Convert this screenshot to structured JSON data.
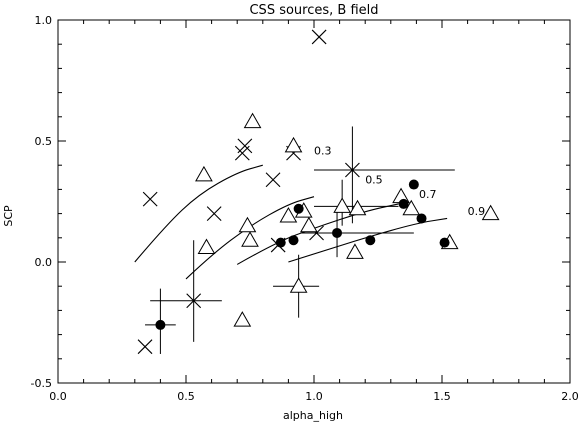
{
  "chart_data": {
    "type": "scatter",
    "title": "CSS sources, B field",
    "xlabel": "alpha_high",
    "ylabel": "SCP",
    "xlim": [
      0.0,
      2.0
    ],
    "ylim": [
      -0.5,
      1.0
    ],
    "xticks": [
      0.0,
      0.5,
      1.0,
      1.5,
      2.0
    ],
    "yticks": [
      -0.5,
      0.0,
      0.5,
      1.0
    ],
    "xtick_labels": [
      "0.0",
      "0.5",
      "1.0",
      "1.5",
      "2.0"
    ],
    "ytick_labels": [
      "-0.5",
      "0.0",
      "0.5",
      "1.0"
    ],
    "grid": false,
    "series": [
      {
        "marker": "cross",
        "points": [
          {
            "x": 1.02,
            "y": 0.93
          },
          {
            "x": 0.73,
            "y": 0.48
          },
          {
            "x": 0.72,
            "y": 0.45
          },
          {
            "x": 0.92,
            "y": 0.45
          },
          {
            "x": 0.36,
            "y": 0.26
          },
          {
            "x": 0.61,
            "y": 0.2
          },
          {
            "x": 0.84,
            "y": 0.34
          },
          {
            "x": 0.86,
            "y": 0.07
          },
          {
            "x": 1.01,
            "y": 0.12
          },
          {
            "x": 1.15,
            "y": 0.38
          },
          {
            "x": 0.53,
            "y": -0.16
          },
          {
            "x": 0.34,
            "y": -0.35
          }
        ]
      },
      {
        "marker": "triangle",
        "points": [
          {
            "x": 0.76,
            "y": 0.58
          },
          {
            "x": 0.92,
            "y": 0.48
          },
          {
            "x": 0.57,
            "y": 0.36
          },
          {
            "x": 0.74,
            "y": 0.15
          },
          {
            "x": 0.75,
            "y": 0.09
          },
          {
            "x": 0.58,
            "y": 0.06
          },
          {
            "x": 0.9,
            "y": 0.19
          },
          {
            "x": 0.96,
            "y": 0.21
          },
          {
            "x": 0.98,
            "y": 0.15
          },
          {
            "x": 1.11,
            "y": 0.23
          },
          {
            "x": 1.17,
            "y": 0.22
          },
          {
            "x": 1.34,
            "y": 0.27
          },
          {
            "x": 1.38,
            "y": 0.22
          },
          {
            "x": 1.16,
            "y": 0.04
          },
          {
            "x": 1.53,
            "y": 0.08
          },
          {
            "x": 1.69,
            "y": 0.2
          },
          {
            "x": 0.94,
            "y": -0.1
          },
          {
            "x": 0.72,
            "y": -0.24
          }
        ]
      },
      {
        "marker": "filled-circle",
        "points": [
          {
            "x": 0.4,
            "y": -0.26
          },
          {
            "x": 0.87,
            "y": 0.08
          },
          {
            "x": 0.92,
            "y": 0.09
          },
          {
            "x": 0.94,
            "y": 0.22
          },
          {
            "x": 1.09,
            "y": 0.12
          },
          {
            "x": 1.22,
            "y": 0.09
          },
          {
            "x": 1.35,
            "y": 0.24
          },
          {
            "x": 1.39,
            "y": 0.32
          },
          {
            "x": 1.42,
            "y": 0.18
          },
          {
            "x": 1.51,
            "y": 0.08
          }
        ]
      }
    ],
    "error_bars": [
      {
        "x": 1.15,
        "y": 0.38,
        "xerr": [
          0.15,
          0.4
        ],
        "yerr": [
          0.22,
          0.18
        ]
      },
      {
        "x": 0.53,
        "y": -0.16,
        "xerr": [
          0.17,
          0.11
        ],
        "yerr": [
          0.17,
          0.25
        ]
      },
      {
        "x": 0.4,
        "y": -0.26,
        "xerr": [
          0.06,
          0.06
        ],
        "yerr": [
          0.12,
          0.15
        ]
      },
      {
        "x": 0.94,
        "y": -0.1,
        "xerr": [
          0.1,
          0.08
        ],
        "yerr": [
          0.13,
          0.13
        ]
      },
      {
        "x": 1.09,
        "y": 0.12,
        "xerr": [
          0.14,
          0.3
        ],
        "yerr": [
          0.1,
          0.1
        ]
      },
      {
        "x": 1.11,
        "y": 0.23,
        "xerr": [
          0.11,
          0.22
        ],
        "yerr": [
          0.08,
          0.11
        ]
      }
    ],
    "curves": [
      {
        "label": "0.3",
        "points": [
          [
            0.3,
            0.0
          ],
          [
            0.42,
            0.15
          ],
          [
            0.55,
            0.28
          ],
          [
            0.7,
            0.37
          ],
          [
            0.8,
            0.4
          ]
        ]
      },
      {
        "label": "0.5",
        "points": [
          [
            0.5,
            -0.07
          ],
          [
            0.6,
            0.03
          ],
          [
            0.75,
            0.15
          ],
          [
            0.9,
            0.24
          ],
          [
            1.0,
            0.27
          ]
        ]
      },
      {
        "label": "0.7",
        "points": [
          [
            0.7,
            -0.01
          ],
          [
            0.85,
            0.08
          ],
          [
            1.0,
            0.14
          ],
          [
            1.2,
            0.21
          ],
          [
            1.33,
            0.24
          ]
        ]
      },
      {
        "label": "0.9",
        "points": [
          [
            0.9,
            0.0
          ],
          [
            1.05,
            0.05
          ],
          [
            1.2,
            0.1
          ],
          [
            1.4,
            0.16
          ],
          [
            1.52,
            0.18
          ]
        ]
      }
    ],
    "annotations": [
      {
        "text": "0.3",
        "x": 1.0,
        "y": 0.46
      },
      {
        "text": "0.5",
        "x": 1.2,
        "y": 0.34
      },
      {
        "text": "0.7",
        "x": 1.41,
        "y": 0.28
      },
      {
        "text": "0.9",
        "x": 1.6,
        "y": 0.21
      }
    ]
  }
}
